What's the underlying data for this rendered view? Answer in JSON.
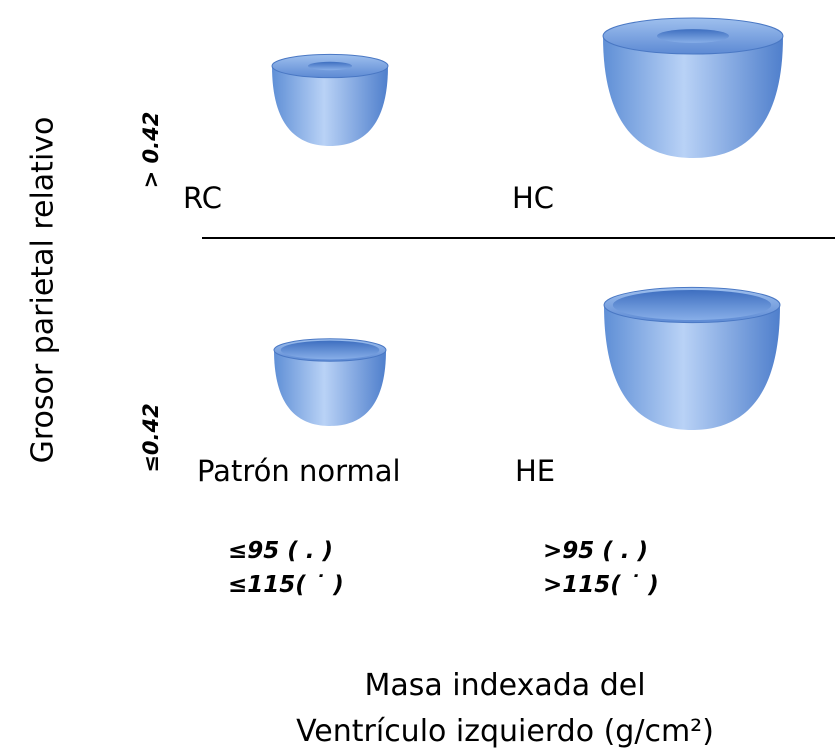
{
  "y_axis_label": "Grosor parietal relativo",
  "rows": [
    {
      "label": "> 0.42"
    },
    {
      "label": "≤0.42"
    }
  ],
  "quadrants": [
    {
      "label": "RC"
    },
    {
      "label": "HC"
    },
    {
      "label": "Patrón normal"
    },
    {
      "label": "HE"
    }
  ],
  "columns": [
    {
      "thresholds": [
        "≤95 ( . )",
        "≤115( ˙ )"
      ]
    },
    {
      "thresholds": [
        ">95 ( . )",
        ">115( ˙ )"
      ]
    }
  ],
  "x_axis_label": [
    "Masa indexada del",
    "Ventrículo izquierdo (g/cm²)"
  ]
}
